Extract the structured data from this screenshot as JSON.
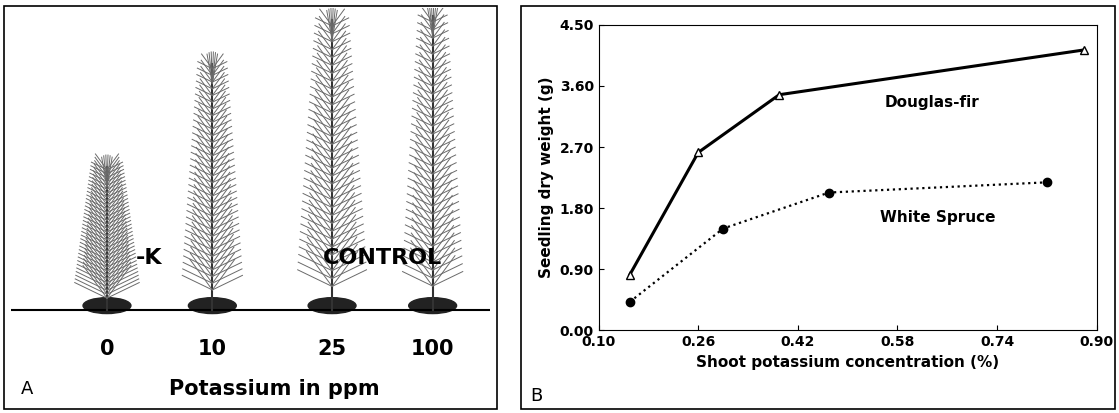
{
  "photo": {
    "panel_label": "A",
    "categories": [
      "0",
      "10",
      "25",
      "100"
    ],
    "xlabel": "Potassium in ppm",
    "labels": [
      "-K",
      "CONTROL"
    ]
  },
  "chart_data": {
    "type": "line",
    "panel_label": "B",
    "xlabel": "Shoot potassium concentration (%)",
    "ylabel": "Seedling dry weight (g)",
    "xlim": [
      0.1,
      0.9
    ],
    "xticks": [
      {
        "value": 0.1,
        "label": "0.10"
      },
      0.26,
      0.42,
      0.58,
      0.74,
      {
        "value": 0.9,
        "label": "0.90"
      }
    ],
    "ylim": [
      0,
      4.5
    ],
    "yticks": [
      {
        "value": 0,
        "label": "0.00"
      },
      {
        "value": 0.9,
        "label": "0.90"
      },
      {
        "value": 1.8,
        "label": "1.80"
      },
      {
        "value": 2.7,
        "label": "2.70"
      },
      {
        "value": 3.6,
        "label": "3.60"
      },
      {
        "value": 4.5,
        "label": "4.50"
      }
    ],
    "series": [
      {
        "name": "Douglas-fir",
        "color": "#000000",
        "marker": "triangle",
        "line_style": "solid",
        "x": [
          0.15,
          0.26,
          0.39,
          0.88
        ],
        "values": [
          0.82,
          2.62,
          3.47,
          4.13
        ]
      },
      {
        "name": "White Spruce",
        "color": "#000000",
        "marker": "circle",
        "line_style": "dotted",
        "x": [
          0.15,
          0.3,
          0.47,
          0.82
        ],
        "values": [
          0.42,
          1.5,
          2.03,
          2.18
        ]
      }
    ]
  }
}
